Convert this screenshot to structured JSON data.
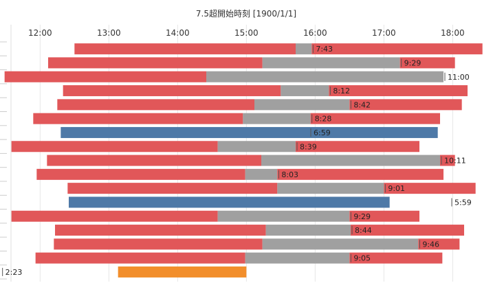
{
  "chart_data": {
    "type": "bar",
    "orientation": "horizontal-gantt",
    "title": "7.5超開始時刻 [1900/1/1]",
    "x_axis": {
      "ticks": [
        "12:00",
        "13:00",
        "14:00",
        "15:00",
        "16:00",
        "17:00",
        "18:00"
      ],
      "range": [
        "11:25",
        "18:25"
      ]
    },
    "colors": {
      "red": "#E15759",
      "gray": "#A0A0A0",
      "blue": "#4E79A7",
      "orange": "#F28E2B"
    },
    "rows": [
      {
        "segments": [
          {
            "start": "12:30",
            "end": "15:43",
            "color": "red"
          },
          {
            "start": "15:43",
            "end": "15:57",
            "color": "gray"
          },
          {
            "start": "15:57",
            "end": "18:26",
            "color": "red"
          }
        ],
        "label": "7:43",
        "label_at": "15:57"
      },
      {
        "segments": [
          {
            "start": "12:07",
            "end": "15:14",
            "color": "red"
          },
          {
            "start": "15:14",
            "end": "17:14",
            "color": "gray"
          },
          {
            "start": "17:14",
            "end": "18:02",
            "color": "red"
          }
        ],
        "label": "9:29",
        "label_at": "17:14"
      },
      {
        "segments": [
          {
            "start": "11:29",
            "end": "14:25",
            "color": "red"
          },
          {
            "start": "14:25",
            "end": "17:52",
            "color": "gray"
          }
        ],
        "label": "11:00",
        "label_at": "17:52"
      },
      {
        "segments": [
          {
            "start": "12:20",
            "end": "15:30",
            "color": "red"
          },
          {
            "start": "15:30",
            "end": "16:12",
            "color": "gray"
          },
          {
            "start": "16:12",
            "end": "18:13",
            "color": "red"
          }
        ],
        "label": "8:12",
        "label_at": "16:12"
      },
      {
        "segments": [
          {
            "start": "12:15",
            "end": "15:07",
            "color": "red"
          },
          {
            "start": "15:07",
            "end": "16:30",
            "color": "gray"
          },
          {
            "start": "16:30",
            "end": "18:08",
            "color": "red"
          }
        ],
        "label": "8:42",
        "label_at": "16:30"
      },
      {
        "segments": [
          {
            "start": "11:54",
            "end": "14:57",
            "color": "red"
          },
          {
            "start": "14:57",
            "end": "15:56",
            "color": "gray"
          },
          {
            "start": "15:56",
            "end": "17:49",
            "color": "red"
          }
        ],
        "label": "8:28",
        "label_at": "15:56"
      },
      {
        "segments": [
          {
            "start": "12:18",
            "end": "17:47",
            "color": "blue"
          }
        ],
        "label": "6:59",
        "label_at": "15:55"
      },
      {
        "segments": [
          {
            "start": "11:35",
            "end": "14:35",
            "color": "red"
          },
          {
            "start": "14:35",
            "end": "15:43",
            "color": "gray"
          },
          {
            "start": "15:43",
            "end": "17:31",
            "color": "red"
          }
        ],
        "label": "8:39",
        "label_at": "15:43"
      },
      {
        "segments": [
          {
            "start": "12:06",
            "end": "15:13",
            "color": "red"
          },
          {
            "start": "15:13",
            "end": "17:49",
            "color": "gray"
          },
          {
            "start": "17:49",
            "end": "18:02",
            "color": "red"
          }
        ],
        "label": "10:11",
        "label_at": "17:49"
      },
      {
        "segments": [
          {
            "start": "11:57",
            "end": "14:59",
            "color": "red"
          },
          {
            "start": "14:59",
            "end": "15:27",
            "color": "gray"
          },
          {
            "start": "15:27",
            "end": "17:52",
            "color": "red"
          }
        ],
        "label": "8:03",
        "label_at": "15:27"
      },
      {
        "segments": [
          {
            "start": "12:24",
            "end": "15:27",
            "color": "red"
          },
          {
            "start": "15:27",
            "end": "17:00",
            "color": "gray"
          },
          {
            "start": "17:00",
            "end": "18:20",
            "color": "red"
          }
        ],
        "label": "9:01",
        "label_at": "17:00"
      },
      {
        "segments": [
          {
            "start": "12:25",
            "end": "17:05",
            "color": "blue"
          }
        ],
        "label": "5:59",
        "label_at": "17:58"
      },
      {
        "segments": [
          {
            "start": "11:35",
            "end": "14:35",
            "color": "red"
          },
          {
            "start": "14:35",
            "end": "16:30",
            "color": "gray"
          },
          {
            "start": "16:30",
            "end": "17:31",
            "color": "red"
          }
        ],
        "label": "9:29",
        "label_at": "16:30"
      },
      {
        "segments": [
          {
            "start": "12:13",
            "end": "15:17",
            "color": "red"
          },
          {
            "start": "15:17",
            "end": "16:31",
            "color": "gray"
          },
          {
            "start": "16:31",
            "end": "18:10",
            "color": "red"
          }
        ],
        "label": "8:44",
        "label_at": "16:31"
      },
      {
        "segments": [
          {
            "start": "12:12",
            "end": "15:14",
            "color": "red"
          },
          {
            "start": "15:14",
            "end": "17:30",
            "color": "gray"
          },
          {
            "start": "17:30",
            "end": "18:06",
            "color": "red"
          }
        ],
        "label": "9:46",
        "label_at": "17:30"
      },
      {
        "segments": [
          {
            "start": "11:56",
            "end": "14:59",
            "color": "red"
          },
          {
            "start": "14:59",
            "end": "16:30",
            "color": "gray"
          },
          {
            "start": "16:30",
            "end": "17:51",
            "color": "red"
          }
        ],
        "label": "9:05",
        "label_at": "16:30"
      },
      {
        "segments": [
          {
            "start": "13:08",
            "end": "15:00",
            "color": "orange"
          }
        ],
        "label": "2:23",
        "label_at": "11:26"
      }
    ]
  }
}
